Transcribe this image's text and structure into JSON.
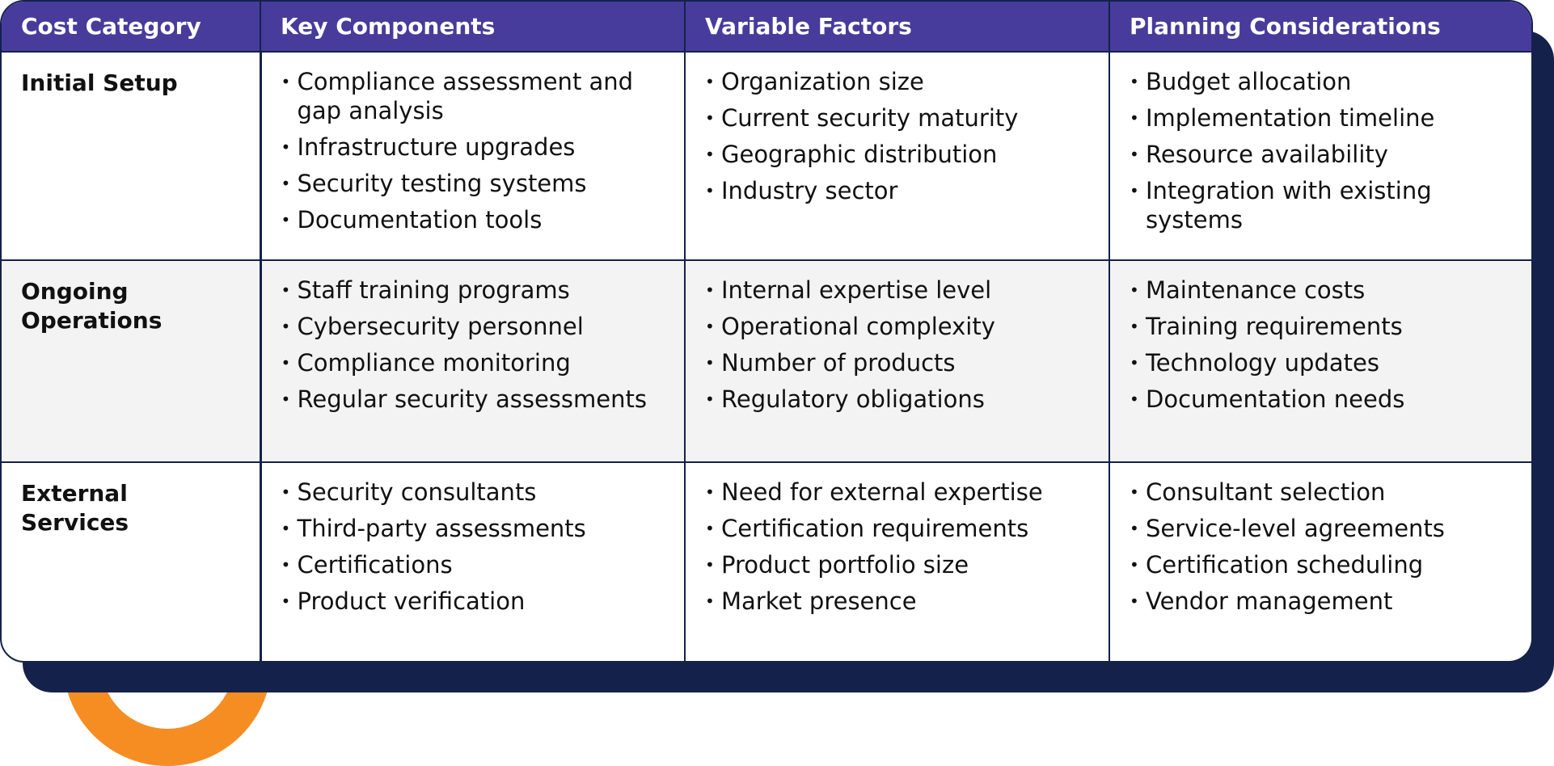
{
  "table": {
    "headers": {
      "category": "Cost Category",
      "components": "Key Components",
      "factors": "Variable Factors",
      "planning": "Planning Considerations"
    },
    "rows": [
      {
        "category": "Initial Setup",
        "components": [
          "Compliance assessment and gap analysis",
          "Infrastructure upgrades",
          "Security testing systems",
          "Documentation tools"
        ],
        "factors": [
          "Organization size",
          "Current security maturity",
          "Geographic distribution",
          "Industry sector"
        ],
        "planning": [
          "Budget allocation",
          "Implementation timeline",
          "Resource availability",
          "Integration with existing systems"
        ]
      },
      {
        "category": "Ongoing Operations",
        "components": [
          "Staff training programs",
          "Cybersecurity personnel",
          "Compliance monitoring",
          "Regular security assessments"
        ],
        "factors": [
          "Internal expertise level",
          "Operational complexity",
          "Number of products",
          "Regulatory obligations"
        ],
        "planning": [
          "Maintenance costs",
          "Training requirements",
          "Technology updates",
          "Documentation needs"
        ]
      },
      {
        "category": "External Services",
        "components": [
          "Security consultants",
          "Third-party assessments",
          "Certifications",
          "Product verification"
        ],
        "factors": [
          "Need for external expertise",
          "Certification requirements",
          "Product portfolio size",
          "Market presence"
        ],
        "planning": [
          "Consultant selection",
          "Service-level agreements",
          "Certification scheduling",
          "Vendor management"
        ]
      }
    ]
  },
  "colors": {
    "header_bg": "#473c9b",
    "border_navy": "#14214a",
    "accent_orange": "#f58d22",
    "alt_row_bg": "#f3f3f3"
  }
}
